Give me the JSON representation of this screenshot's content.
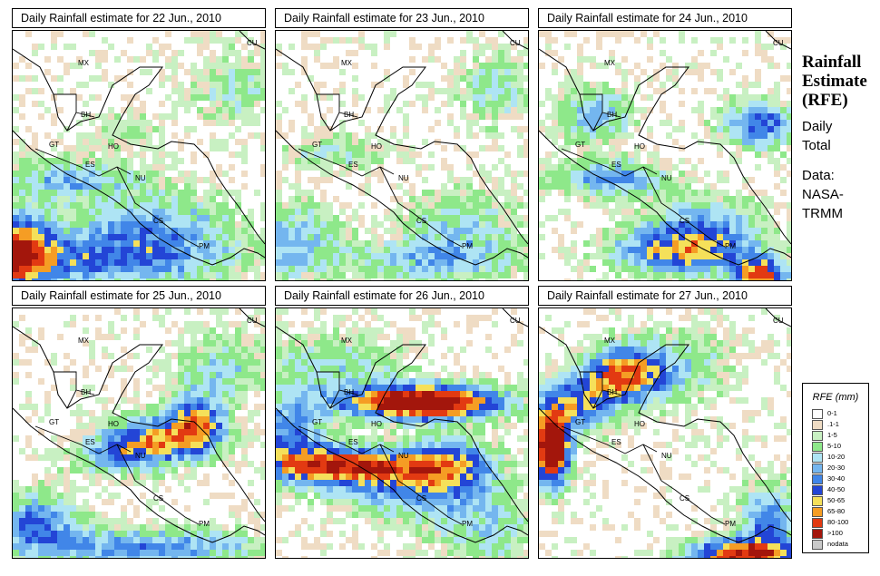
{
  "panels": [
    {
      "title": "Daily Rainfall estimate for  22 Jun., 2010"
    },
    {
      "title": "Daily Rainfall estimate for  23 Jun., 2010"
    },
    {
      "title": "Daily Rainfall estimate for  24 Jun., 2010"
    },
    {
      "title": "Daily Rainfall estimate for  25 Jun., 2010"
    },
    {
      "title": "Daily Rainfall estimate for  26 Jun., 2010"
    },
    {
      "title": "Daily Rainfall estimate for  27 Jun., 2010"
    }
  ],
  "side": {
    "title_line1": "Rainfall",
    "title_line2": "Estimate",
    "title_line3": "(RFE)",
    "sub_line1": "Daily",
    "sub_line2": "Total",
    "source_line1": "Data:",
    "source_line2": "NASA-",
    "source_line3": "TRMM"
  },
  "country_labels": [
    "MX",
    "CU",
    "BH",
    "GT",
    "HO",
    "ES",
    "NU",
    "CS",
    "PM"
  ],
  "legend": {
    "title": "RFE (mm)",
    "items": [
      {
        "label": "0-1",
        "color": "#ffffff"
      },
      {
        "label": ".1-1",
        "color": "#efdcc4"
      },
      {
        "label": "1-5",
        "color": "#c8f0c2"
      },
      {
        "label": "5-10",
        "color": "#8ee88a"
      },
      {
        "label": "10-20",
        "color": "#aee4f4"
      },
      {
        "label": "20-30",
        "color": "#74b6ef"
      },
      {
        "label": "30-40",
        "color": "#4186e8"
      },
      {
        "label": "40-50",
        "color": "#2345d6"
      },
      {
        "label": "50-65",
        "color": "#f5e05a"
      },
      {
        "label": "65-80",
        "color": "#f59d24"
      },
      {
        "label": "80-100",
        "color": "#e23a12"
      },
      {
        "label": ">100",
        "color": "#a3160c"
      },
      {
        "label": "nodata",
        "color": "#c9c9c9"
      }
    ]
  }
}
